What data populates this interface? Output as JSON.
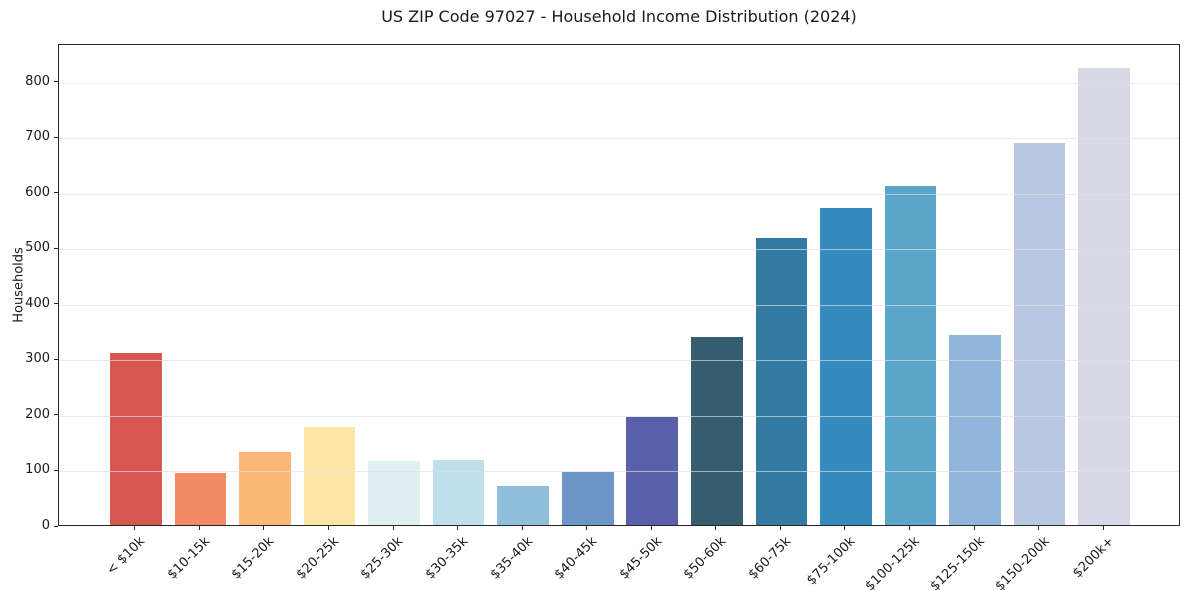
{
  "figure": {
    "background": "#ffffff",
    "spine_color": "#262626",
    "grid_color": "#e0e0e0",
    "text_color": "#1a1a1a"
  },
  "chart_data": {
    "type": "bar",
    "title": "US ZIP Code 97027 - Household Income Distribution (2024)",
    "xlabel": "",
    "ylabel": "Households",
    "categories": [
      "< $10k",
      "$10-15k",
      "$15-20k",
      "$20-25k",
      "$25-30k",
      "$30-35k",
      "$35-40k",
      "$40-45k",
      "$45-50k",
      "$50-60k",
      "$60-75k",
      "$75-100k",
      "$100-125k",
      "$125-150k",
      "$150-200k",
      "$200k+"
    ],
    "values": [
      310,
      93,
      131,
      176,
      115,
      117,
      70,
      95,
      194,
      338,
      517,
      570,
      611,
      343,
      688,
      823
    ],
    "bar_colors": [
      "#d6574f",
      "#f28a66",
      "#fbb878",
      "#fde5a7",
      "#e2eff3",
      "#bfdfed",
      "#90bfdc",
      "#6e95c7",
      "#5a5fa9",
      "#365d6e",
      "#337ba3",
      "#368bbe",
      "#5ba5c9",
      "#90b5d8",
      "#b7c8e0",
      "#d8d9e7"
    ],
    "yticks": [
      0,
      100,
      200,
      300,
      400,
      500,
      600,
      700,
      800
    ],
    "ylim": [
      0,
      868
    ],
    "grid": "horizontal",
    "legend": "none",
    "bar_width_fraction": 0.8
  }
}
